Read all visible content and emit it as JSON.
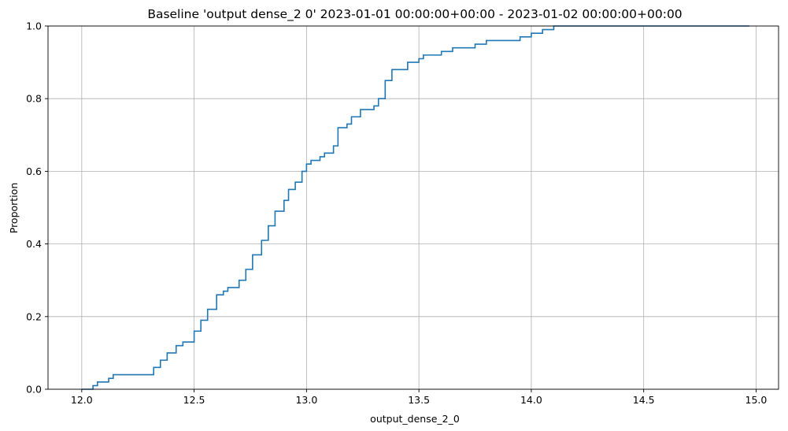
{
  "chart_data": {
    "type": "line",
    "title": "Baseline 'output dense_2 0' 2023-01-01 00:00:00+00:00 - 2023-01-02 00:00:00+00:00",
    "xlabel": "output_dense_2_0",
    "ylabel": "Proportion",
    "xlim": [
      11.85,
      15.1
    ],
    "ylim": [
      0,
      1
    ],
    "xticks": [
      12.0,
      12.5,
      13.0,
      13.5,
      14.0,
      14.5,
      15.0
    ],
    "xtick_labels": [
      "12.0",
      "12.5",
      "13.0",
      "13.5",
      "14.0",
      "14.5",
      "15.0"
    ],
    "yticks": [
      0,
      0.2,
      0.4,
      0.6,
      0.8,
      1.0
    ],
    "ytick_labels": [
      "0.0",
      "0.2",
      "0.4",
      "0.6",
      "0.8",
      "1.0"
    ],
    "grid": true,
    "line_color": "#1f77b4",
    "series": [
      {
        "step": "post",
        "x": [
          12.0,
          12.05,
          12.07,
          12.12,
          12.14,
          12.2,
          12.32,
          12.35,
          12.38,
          12.42,
          12.45,
          12.5,
          12.53,
          12.56,
          12.6,
          12.63,
          12.65,
          12.7,
          12.73,
          12.76,
          12.8,
          12.83,
          12.86,
          12.9,
          12.92,
          12.95,
          12.98,
          13.0,
          13.02,
          13.06,
          13.08,
          13.12,
          13.14,
          13.18,
          13.2,
          13.24,
          13.3,
          13.32,
          13.35,
          13.38,
          13.45,
          13.5,
          13.52,
          13.55,
          13.6,
          13.65,
          13.75,
          13.8,
          13.9,
          13.95,
          14.0,
          14.05,
          14.1,
          14.97
        ],
        "y": [
          0.0,
          0.01,
          0.02,
          0.03,
          0.04,
          0.04,
          0.06,
          0.08,
          0.1,
          0.12,
          0.13,
          0.16,
          0.19,
          0.22,
          0.26,
          0.27,
          0.28,
          0.3,
          0.33,
          0.37,
          0.41,
          0.45,
          0.49,
          0.52,
          0.55,
          0.57,
          0.6,
          0.62,
          0.63,
          0.64,
          0.65,
          0.67,
          0.72,
          0.73,
          0.75,
          0.77,
          0.78,
          0.8,
          0.85,
          0.88,
          0.9,
          0.91,
          0.92,
          0.92,
          0.93,
          0.94,
          0.95,
          0.96,
          0.96,
          0.97,
          0.98,
          0.99,
          1.0,
          1.0
        ]
      }
    ]
  }
}
